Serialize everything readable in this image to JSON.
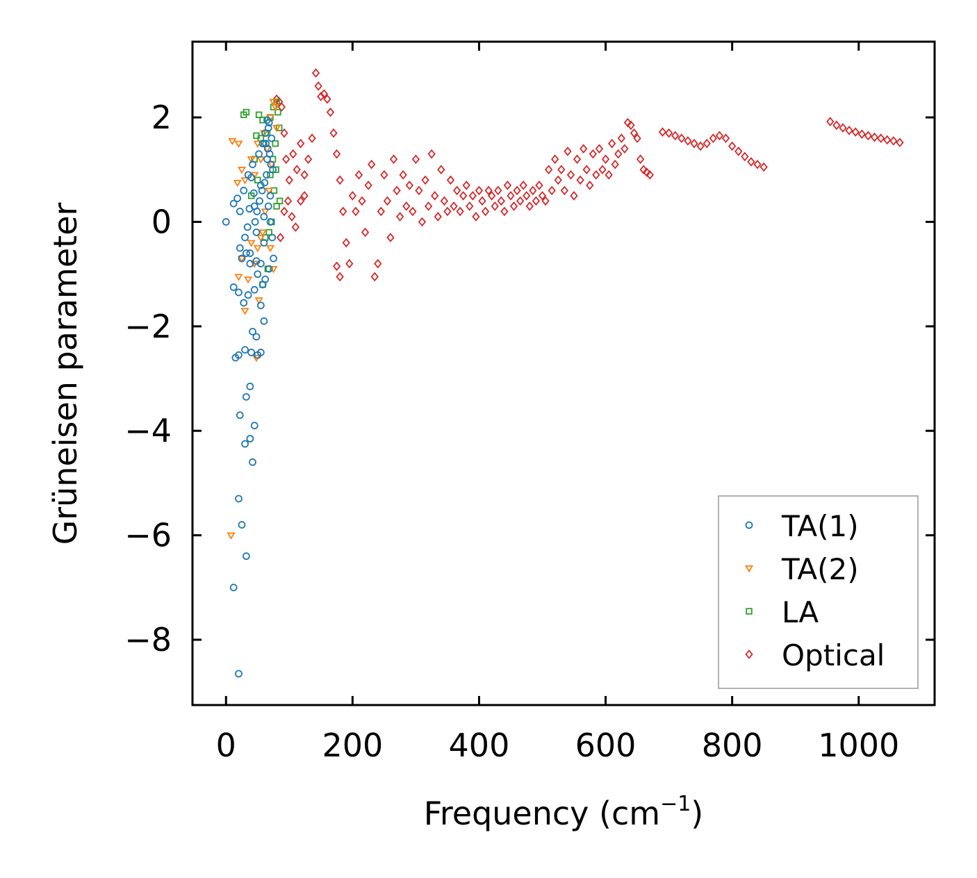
{
  "chart_data": {
    "type": "scatter",
    "title": "",
    "xlabel": "Frequency (cm",
    "xlabel_sup": "−1",
    "xlabel_close": ")",
    "ylabel": "Grüneisen parameter",
    "xlim": [
      -53,
      1120
    ],
    "ylim": [
      -9.25,
      3.45
    ],
    "x_ticks": [
      0,
      200,
      400,
      600,
      800,
      1000
    ],
    "x_tick_labels": [
      "0",
      "200",
      "400",
      "600",
      "800",
      "1000"
    ],
    "y_ticks": [
      2,
      0,
      -2,
      -4,
      -6,
      -8
    ],
    "y_tick_labels": [
      "2",
      "0",
      "−2",
      "−4",
      "−6",
      "−8"
    ],
    "legend": {
      "position": "lower-right",
      "entries": [
        "TA(1)",
        "TA(2)",
        "LA",
        "Optical"
      ]
    },
    "series": [
      {
        "name": "TA(1)",
        "marker": "circle",
        "color": "#1f77b4",
        "points": [
          [
            0,
            0
          ],
          [
            12,
            0.35
          ],
          [
            18,
            0.45
          ],
          [
            22,
            0.2
          ],
          [
            28,
            0.6
          ],
          [
            30,
            -0.3
          ],
          [
            35,
            0.9
          ],
          [
            38,
            -0.6
          ],
          [
            42,
            1.1
          ],
          [
            45,
            0.3
          ],
          [
            48,
            -0.2
          ],
          [
            52,
            1.3
          ],
          [
            55,
            0.7
          ],
          [
            58,
            1.5
          ],
          [
            60,
            0.1
          ],
          [
            62,
            1.7
          ],
          [
            65,
            1.2
          ],
          [
            68,
            1.9
          ],
          [
            70,
            0.5
          ],
          [
            72,
            1.6
          ],
          [
            74,
            1.0
          ],
          [
            60,
            -0.4
          ],
          [
            55,
            -0.8
          ],
          [
            50,
            -1.0
          ],
          [
            45,
            -1.3
          ],
          [
            58,
            -1.2
          ],
          [
            62,
            -1.1
          ],
          [
            12,
            -1.25
          ],
          [
            20,
            -1.35
          ],
          [
            28,
            -1.55
          ],
          [
            35,
            -1.4
          ],
          [
            22,
            -0.5
          ],
          [
            25,
            -0.7
          ],
          [
            32,
            -0.6
          ],
          [
            38,
            -0.8
          ],
          [
            48,
            -0.75
          ],
          [
            55,
            -1.6
          ],
          [
            60,
            -1.9
          ],
          [
            42,
            -2.1
          ],
          [
            48,
            -2.2
          ],
          [
            20,
            -2.55
          ],
          [
            30,
            -2.45
          ],
          [
            40,
            -2.5
          ],
          [
            50,
            -2.55
          ],
          [
            55,
            -2.5
          ],
          [
            15,
            -2.6
          ],
          [
            38,
            -3.15
          ],
          [
            32,
            -3.35
          ],
          [
            22,
            -3.7
          ],
          [
            45,
            -3.9
          ],
          [
            38,
            -4.15
          ],
          [
            30,
            -4.25
          ],
          [
            42,
            -4.6
          ],
          [
            20,
            -5.3
          ],
          [
            25,
            -5.8
          ],
          [
            32,
            -6.4
          ],
          [
            12,
            -7.0
          ],
          [
            20,
            -8.65
          ],
          [
            65,
            1.95
          ],
          [
            67,
            1.8
          ],
          [
            63,
            1.5
          ],
          [
            66,
            1.4
          ],
          [
            69,
            1.3
          ],
          [
            71,
            1.1
          ],
          [
            64,
            0.9
          ],
          [
            61,
            0.75
          ],
          [
            57,
            0.6
          ],
          [
            53,
            0.4
          ],
          [
            49,
            0.2
          ],
          [
            46,
            0.0
          ],
          [
            44,
            0.55
          ],
          [
            40,
            0.85
          ],
          [
            37,
            0.25
          ],
          [
            34,
            -0.1
          ],
          [
            67,
            0.3
          ],
          [
            70,
            0.0
          ],
          [
            73,
            -0.3
          ],
          [
            75,
            -0.7
          ],
          [
            68,
            -0.9
          ]
        ]
      },
      {
        "name": "TA(2)",
        "marker": "triangle-down",
        "color": "#ff7f0e",
        "points": [
          [
            10,
            1.55
          ],
          [
            20,
            1.5
          ],
          [
            25,
            1.0
          ],
          [
            30,
            0.8
          ],
          [
            18,
            0.75
          ],
          [
            40,
            1.2
          ],
          [
            45,
            0.9
          ],
          [
            50,
            1.5
          ],
          [
            55,
            1.2
          ],
          [
            60,
            1.7
          ],
          [
            65,
            1.4
          ],
          [
            70,
            2.0
          ],
          [
            75,
            2.3
          ],
          [
            78,
            2.2
          ],
          [
            80,
            1.8
          ],
          [
            72,
            1.1
          ],
          [
            68,
            0.6
          ],
          [
            62,
            0.2
          ],
          [
            58,
            -0.2
          ],
          [
            50,
            -0.5
          ],
          [
            45,
            -0.8
          ],
          [
            40,
            -0.4
          ],
          [
            35,
            -1.1
          ],
          [
            30,
            -1.7
          ],
          [
            25,
            -0.7
          ],
          [
            20,
            -1.05
          ],
          [
            48,
            -2.6
          ],
          [
            52,
            -1.5
          ],
          [
            70,
            -0.5
          ],
          [
            75,
            -0.9
          ],
          [
            8,
            -6.0
          ],
          [
            55,
            -0.3
          ]
        ]
      },
      {
        "name": "LA",
        "marker": "square",
        "color": "#2ca02c",
        "points": [
          [
            28,
            2.05
          ],
          [
            32,
            2.1
          ],
          [
            52,
            2.05
          ],
          [
            58,
            1.95
          ],
          [
            48,
            1.65
          ],
          [
            55,
            1.6
          ],
          [
            60,
            1.5
          ],
          [
            65,
            1.7
          ],
          [
            70,
            2.0
          ],
          [
            75,
            2.2
          ],
          [
            80,
            2.3
          ],
          [
            82,
            2.1
          ],
          [
            84,
            1.8
          ],
          [
            78,
            1.5
          ],
          [
            74,
            1.2
          ],
          [
            70,
            0.9
          ],
          [
            76,
            0.6
          ],
          [
            80,
            0.3
          ],
          [
            85,
            0.4
          ],
          [
            72,
            0.0
          ],
          [
            68,
            -0.2
          ],
          [
            62,
            -0.3
          ],
          [
            40,
            0.5
          ],
          [
            45,
            1.2
          ],
          [
            50,
            0.8
          ],
          [
            58,
            -1.2
          ],
          [
            66,
            -0.9
          ],
          [
            79,
            1.0
          ]
        ]
      },
      {
        "name": "Optical",
        "marker": "diamond",
        "color": "#d62728",
        "points": [
          [
            80,
            2.35
          ],
          [
            84,
            2.3
          ],
          [
            88,
            2.2
          ],
          [
            92,
            1.7
          ],
          [
            95,
            1.2
          ],
          [
            100,
            0.8
          ],
          [
            106,
            1.3
          ],
          [
            112,
            1.0
          ],
          [
            118,
            1.5
          ],
          [
            124,
            0.9
          ],
          [
            130,
            1.2
          ],
          [
            136,
            1.6
          ],
          [
            142,
            2.85
          ],
          [
            146,
            2.6
          ],
          [
            150,
            2.4
          ],
          [
            155,
            2.45
          ],
          [
            160,
            2.35
          ],
          [
            165,
            2.1
          ],
          [
            170,
            1.7
          ],
          [
            175,
            1.3
          ],
          [
            180,
            0.8
          ],
          [
            185,
            0.2
          ],
          [
            190,
            -0.4
          ],
          [
            195,
            -0.8
          ],
          [
            180,
            -1.05
          ],
          [
            175,
            -0.85
          ],
          [
            200,
            0.5
          ],
          [
            205,
            0.2
          ],
          [
            210,
            0.9
          ],
          [
            215,
            0.4
          ],
          [
            220,
            -0.2
          ],
          [
            225,
            0.7
          ],
          [
            230,
            1.1
          ],
          [
            235,
            -1.05
          ],
          [
            240,
            -0.8
          ],
          [
            245,
            0.2
          ],
          [
            250,
            0.9
          ],
          [
            255,
            0.4
          ],
          [
            260,
            -0.3
          ],
          [
            265,
            1.2
          ],
          [
            270,
            0.6
          ],
          [
            275,
            0.1
          ],
          [
            280,
            0.9
          ],
          [
            285,
            0.3
          ],
          [
            290,
            0.7
          ],
          [
            295,
            0.2
          ],
          [
            300,
            1.2
          ],
          [
            305,
            0.6
          ],
          [
            310,
            0.0
          ],
          [
            315,
            0.8
          ],
          [
            320,
            0.3
          ],
          [
            325,
            1.3
          ],
          [
            330,
            0.5
          ],
          [
            335,
            0.1
          ],
          [
            340,
            1.0
          ],
          [
            345,
            0.4
          ],
          [
            350,
            0.2
          ],
          [
            355,
            0.8
          ],
          [
            360,
            0.3
          ],
          [
            365,
            0.6
          ],
          [
            370,
            0.2
          ],
          [
            375,
            0.5
          ],
          [
            380,
            0.7
          ],
          [
            385,
            0.3
          ],
          [
            390,
            0.5
          ],
          [
            395,
            0.1
          ],
          [
            400,
            0.6
          ],
          [
            405,
            0.4
          ],
          [
            410,
            0.2
          ],
          [
            415,
            0.6
          ],
          [
            420,
            0.5
          ],
          [
            425,
            0.3
          ],
          [
            430,
            0.6
          ],
          [
            435,
            0.4
          ],
          [
            440,
            0.2
          ],
          [
            445,
            0.7
          ],
          [
            450,
            0.5
          ],
          [
            455,
            0.3
          ],
          [
            460,
            0.6
          ],
          [
            465,
            0.4
          ],
          [
            470,
            0.7
          ],
          [
            475,
            0.5
          ],
          [
            480,
            0.3
          ],
          [
            485,
            0.6
          ],
          [
            490,
            0.4
          ],
          [
            495,
            0.7
          ],
          [
            500,
            0.5
          ],
          [
            505,
            0.4
          ],
          [
            510,
            1.0
          ],
          [
            515,
            0.6
          ],
          [
            520,
            1.2
          ],
          [
            525,
            0.8
          ],
          [
            530,
            1.0
          ],
          [
            535,
            0.6
          ],
          [
            540,
            1.35
          ],
          [
            545,
            0.9
          ],
          [
            550,
            0.5
          ],
          [
            555,
            1.2
          ],
          [
            560,
            0.8
          ],
          [
            565,
            1.4
          ],
          [
            570,
            1.0
          ],
          [
            575,
            0.7
          ],
          [
            580,
            1.3
          ],
          [
            585,
            0.9
          ],
          [
            590,
            1.4
          ],
          [
            595,
            1.0
          ],
          [
            600,
            1.2
          ],
          [
            605,
            0.9
          ],
          [
            610,
            1.5
          ],
          [
            615,
            1.1
          ],
          [
            620,
            1.3
          ],
          [
            625,
            1.6
          ],
          [
            630,
            1.4
          ],
          [
            635,
            1.9
          ],
          [
            640,
            1.85
          ],
          [
            645,
            1.7
          ],
          [
            650,
            1.6
          ],
          [
            655,
            1.2
          ],
          [
            660,
            1.0
          ],
          [
            665,
            0.95
          ],
          [
            670,
            0.9
          ],
          [
            690,
            1.72
          ],
          [
            700,
            1.7
          ],
          [
            710,
            1.65
          ],
          [
            720,
            1.6
          ],
          [
            730,
            1.55
          ],
          [
            740,
            1.5
          ],
          [
            750,
            1.45
          ],
          [
            760,
            1.5
          ],
          [
            770,
            1.6
          ],
          [
            780,
            1.65
          ],
          [
            790,
            1.6
          ],
          [
            800,
            1.45
          ],
          [
            810,
            1.35
          ],
          [
            820,
            1.25
          ],
          [
            830,
            1.15
          ],
          [
            840,
            1.1
          ],
          [
            850,
            1.05
          ],
          [
            955,
            1.92
          ],
          [
            965,
            1.85
          ],
          [
            975,
            1.8
          ],
          [
            985,
            1.75
          ],
          [
            995,
            1.72
          ],
          [
            1005,
            1.68
          ],
          [
            1015,
            1.65
          ],
          [
            1025,
            1.62
          ],
          [
            1035,
            1.6
          ],
          [
            1045,
            1.57
          ],
          [
            1055,
            1.55
          ],
          [
            1065,
            1.52
          ],
          [
            98,
            0.4
          ],
          [
            104,
            0.1
          ],
          [
            110,
            -0.1
          ],
          [
            86,
            -0.3
          ],
          [
            92,
            0.2
          ],
          [
            118,
            0.4
          ],
          [
            124,
            0.5
          ]
        ]
      }
    ]
  }
}
